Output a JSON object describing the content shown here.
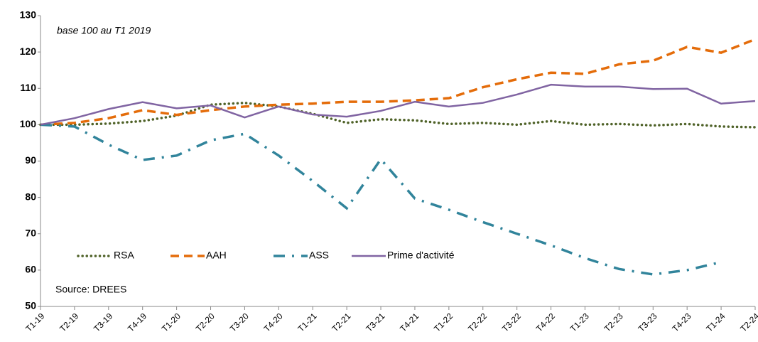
{
  "chart_data": {
    "type": "line",
    "annotations": [
      "base 100  au T1 2019",
      "Source: DREES"
    ],
    "categories": [
      "T1-19",
      "T2-19",
      "T3-19",
      "T4-19",
      "T1-20",
      "T2-20",
      "T3-20",
      "T4-20",
      "T1-21",
      "T2-21",
      "T3-21",
      "T4-21",
      "T1-22",
      "T2-22",
      "T3-22",
      "T4-22",
      "T1-23",
      "T2-23",
      "T3-23",
      "T4-23",
      "T1-24",
      "T2-24"
    ],
    "series": [
      {
        "name": "RSA",
        "color": "#4f6228",
        "style": "dotted",
        "values": [
          100,
          100,
          100.3,
          101,
          102.5,
          105.5,
          106,
          105,
          103,
          100.5,
          101.5,
          101.2,
          100.2,
          100.5,
          100,
          101,
          100,
          100.2,
          99.8,
          100.2,
          99.5,
          99.3
        ]
      },
      {
        "name": "AAH",
        "color": "#e46c0a",
        "style": "dashed",
        "values": [
          100,
          100.5,
          101.8,
          104,
          102.7,
          104,
          105,
          105.5,
          105.8,
          106.3,
          106.3,
          106.7,
          107.3,
          110.3,
          112.5,
          114.3,
          114,
          116.6,
          117.6,
          121.4,
          119.8,
          123.5
        ]
      },
      {
        "name": "ASS",
        "color": "#31849b",
        "style": "dashdot",
        "values": [
          100,
          99.5,
          94.5,
          90.3,
          91.5,
          95.7,
          97.5,
          91.5,
          84.5,
          77,
          90.5,
          79.7,
          76.6,
          73.2,
          70,
          66.8,
          63.3,
          60.3,
          58.8,
          60,
          62.2,
          null
        ]
      },
      {
        "name": "Prime d'activité",
        "color": "#8064a2",
        "style": "solid",
        "values": [
          100,
          101.8,
          104.3,
          106.2,
          104.5,
          105.3,
          102,
          105,
          102.8,
          102.2,
          103.8,
          106.3,
          105,
          106,
          108.3,
          111,
          110.5,
          110.5,
          109.8,
          109.9,
          105.8,
          106.5
        ]
      }
    ],
    "ylim": [
      50,
      130
    ],
    "yticks": [
      50,
      60,
      70,
      80,
      90,
      100,
      110,
      120,
      130
    ],
    "grid": false,
    "legend": "inside-bottom"
  }
}
